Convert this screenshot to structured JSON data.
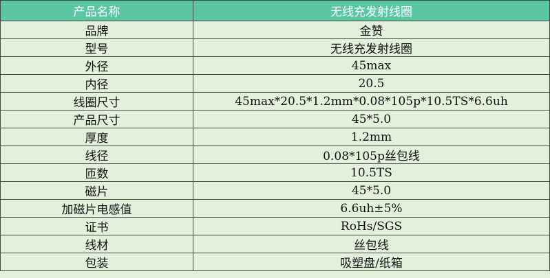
{
  "table": {
    "header": [
      "产品名称",
      "无线充发射线圈"
    ],
    "rows": [
      [
        "品牌",
        "金赞"
      ],
      [
        "型号",
        "无线充发射线圈"
      ],
      [
        "外径",
        "45max"
      ],
      [
        "内径",
        "20.5"
      ],
      [
        "线圈尺寸",
        "45max*20.5*1.2mm*0.08*105p*10.5TS*6.6uh"
      ],
      [
        "产品尺寸",
        "45*5.0"
      ],
      [
        "厚度",
        "1.2mm"
      ],
      [
        "线径",
        "0.08*105p丝包线"
      ],
      [
        "匝数",
        "10.5TS"
      ],
      [
        "磁片",
        "45*5.0"
      ],
      [
        "加磁片电感值",
        "6.6uh±5%"
      ],
      [
        "证书",
        "RoHs/SGS"
      ],
      [
        "线材",
        "丝包线"
      ],
      [
        "包装",
        "吸塑盘/纸箱"
      ]
    ]
  }
}
